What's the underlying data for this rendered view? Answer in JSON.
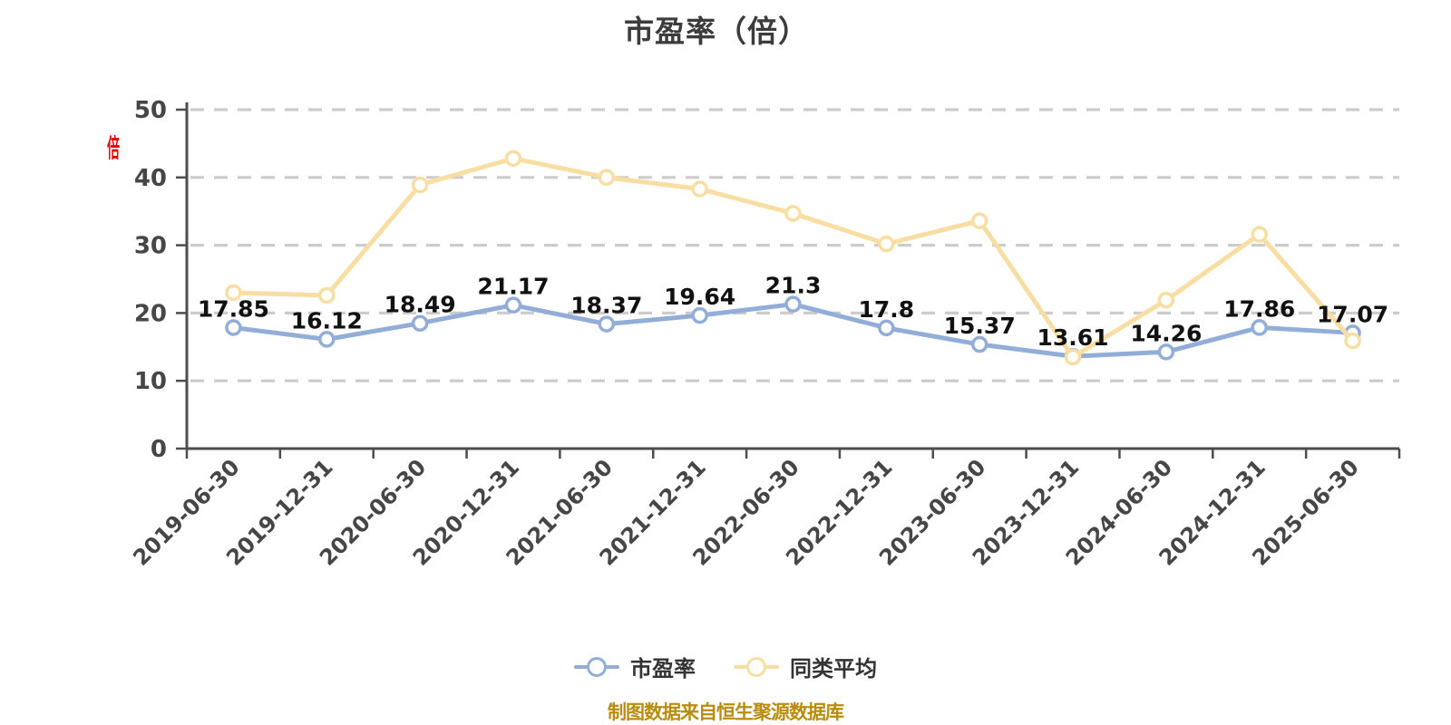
{
  "title": "市盈率（倍）",
  "y_axis_unit": "倍",
  "footer": "制图数据来自恒生聚源数据库",
  "legend": [
    {
      "label": "市盈率",
      "color": "#92add8"
    },
    {
      "label": "同类平均",
      "color": "#f8dea2"
    }
  ],
  "colors": {
    "pe_line": "#92add8",
    "peer_line": "#f8dea2",
    "marker_fill": "#ffffff",
    "grid": "#cccccc",
    "axis": "#4d4d4d",
    "tick_label": "#464646",
    "value_label": "#111111",
    "title": "#3c3c3c",
    "footer": "#ba8c0e",
    "unit_red": "#e60000"
  },
  "chart_data": {
    "type": "line",
    "title": "市盈率（倍）",
    "xlabel": "",
    "ylabel": "倍",
    "ylim": [
      0,
      50
    ],
    "y_ticks": [
      0,
      10,
      20,
      30,
      40,
      50
    ],
    "grid": "horizontal-dashed",
    "legend_position": "bottom",
    "categories": [
      "2019-06-30",
      "2019-12-31",
      "2020-06-30",
      "2020-12-31",
      "2021-06-30",
      "2021-12-31",
      "2022-06-30",
      "2022-12-31",
      "2023-06-30",
      "2023-12-31",
      "2024-06-30",
      "2024-12-31",
      "2025-06-30"
    ],
    "series": [
      {
        "name": "市盈率",
        "color": "#92add8",
        "show_value_labels": true,
        "values": [
          17.85,
          16.12,
          18.49,
          21.17,
          18.37,
          19.64,
          21.3,
          17.8,
          15.37,
          13.61,
          14.26,
          17.86,
          17.07
        ]
      },
      {
        "name": "同类平均",
        "color": "#f8dea2",
        "show_value_labels": false,
        "values": [
          23.0,
          22.6,
          38.9,
          42.8,
          40.0,
          38.3,
          34.7,
          30.2,
          33.6,
          13.5,
          21.9,
          31.6,
          15.9
        ]
      }
    ]
  }
}
